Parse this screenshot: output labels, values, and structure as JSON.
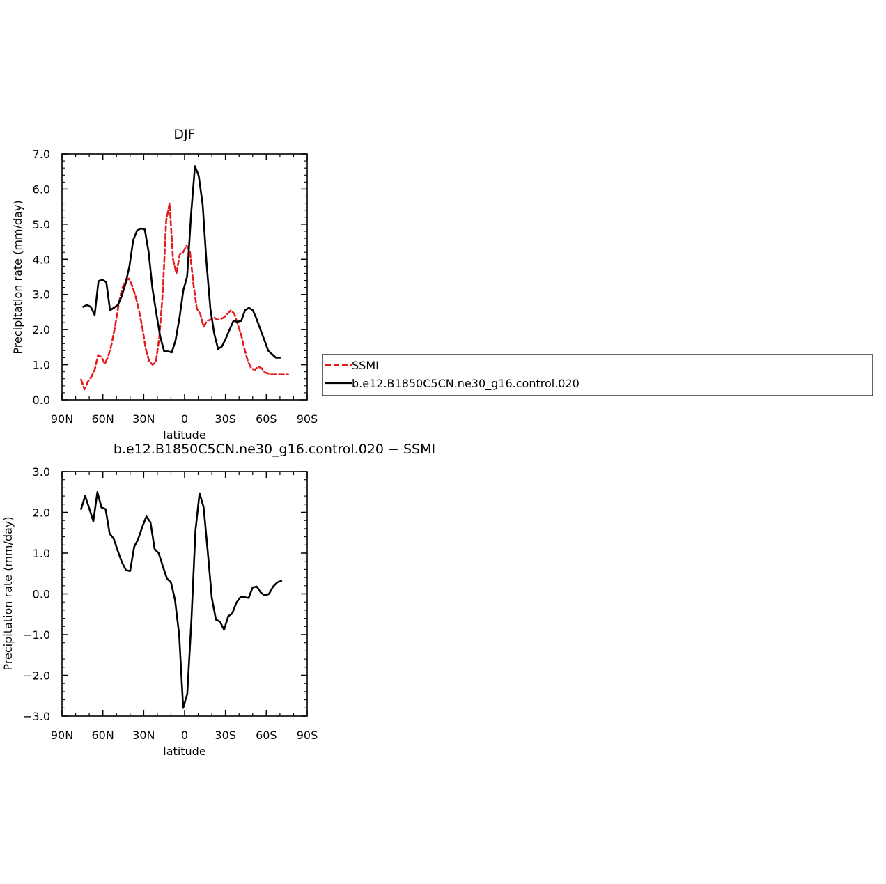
{
  "chart_data": [
    {
      "type": "line",
      "title": "DJF",
      "xlabel": "latitude",
      "ylabel": "Precipitation rate (mm/day)",
      "xlim": [
        90,
        -90
      ],
      "ylim": [
        0,
        7
      ],
      "x_ticks": [
        90,
        60,
        30,
        0,
        -30,
        -60,
        -90
      ],
      "x_tick_labels": [
        "90N",
        "60N",
        "30N",
        "0",
        "30S",
        "60S",
        "90S"
      ],
      "y_ticks": [
        0,
        1,
        2,
        3,
        4,
        5,
        6,
        7
      ],
      "y_tick_labels": [
        "0.0",
        "1.0",
        "2.0",
        "3.0",
        "4.0",
        "5.0",
        "6.0",
        "7.0"
      ],
      "legend_position": "right",
      "series": [
        {
          "name": "SSMI",
          "color": "#e41a1c",
          "dash": "dashed",
          "x": [
            76,
            73.5,
            71,
            68.5,
            66,
            63.5,
            61,
            58.5,
            56,
            53.5,
            51,
            48.5,
            46,
            43.5,
            41,
            38.5,
            36,
            33.5,
            31,
            28.5,
            26,
            23.5,
            21,
            18.5,
            16,
            13.5,
            11,
            8.5,
            6,
            3.5,
            1,
            -1.5,
            -4,
            -6.5,
            -9,
            -11.5,
            -14,
            -16.5,
            -19,
            -21.5,
            -24,
            -26.5,
            -29,
            -31.5,
            -34,
            -36.5,
            -39,
            -41.5,
            -44,
            -46.5,
            -49,
            -51.5,
            -54,
            -56.5,
            -59,
            -61.5,
            -64,
            -66.5,
            -69,
            -71.5,
            -74,
            -76
          ],
          "y": [
            0.58,
            0.3,
            0.52,
            0.65,
            0.85,
            1.28,
            1.22,
            1.02,
            1.25,
            1.6,
            2.1,
            2.7,
            3.15,
            3.38,
            3.45,
            3.25,
            2.95,
            2.55,
            2.05,
            1.45,
            1.1,
            1.0,
            1.08,
            1.8,
            3.05,
            5.1,
            5.6,
            4.0,
            3.6,
            4.15,
            4.2,
            4.4,
            4.2,
            3.3,
            2.6,
            2.45,
            2.08,
            2.25,
            2.28,
            2.35,
            2.28,
            2.3,
            2.35,
            2.45,
            2.55,
            2.45,
            2.15,
            1.85,
            1.45,
            1.1,
            0.9,
            0.85,
            0.95,
            0.9,
            0.78,
            0.75,
            0.72,
            0.72,
            0.72,
            0.72,
            0.72,
            0.72
          ]
        },
        {
          "name": "b.e12.B1850C5CN.ne30_g16.control.020",
          "color": "#000000",
          "dash": "solid",
          "x": [
            74.5,
            71.7,
            68.9,
            66,
            63.2,
            60.4,
            57.5,
            54.7,
            51.9,
            49,
            46.2,
            43.4,
            40.5,
            37.7,
            34.9,
            32,
            29.2,
            26.4,
            23.5,
            20.7,
            17.9,
            15,
            12.2,
            9.4,
            6.6,
            3.7,
            0.9,
            -1.9,
            -4.8,
            -7.6,
            -10.4,
            -13.3,
            -16.1,
            -18.9,
            -21.8,
            -24.6,
            -27.4,
            -30.3,
            -33.1,
            -35.9,
            -38.7,
            -41.6,
            -44.4,
            -47.2,
            -50.1,
            -52.9,
            -55.7,
            -58.6,
            -61.4,
            -64.2,
            -67.1,
            -69.9
          ],
          "y": [
            2.65,
            2.7,
            2.65,
            2.42,
            3.38,
            3.42,
            3.35,
            2.55,
            2.62,
            2.7,
            2.95,
            3.3,
            3.8,
            4.55,
            4.82,
            4.88,
            4.85,
            4.2,
            3.15,
            2.45,
            1.8,
            1.38,
            1.38,
            1.35,
            1.7,
            2.35,
            3.12,
            3.52,
            5.3,
            6.65,
            6.38,
            5.55,
            3.9,
            2.6,
            1.88,
            1.45,
            1.52,
            1.75,
            2.0,
            2.25,
            2.22,
            2.25,
            2.55,
            2.62,
            2.55,
            2.3,
            2.0,
            1.7,
            1.4,
            1.3,
            1.2,
            1.2
          ]
        }
      ]
    },
    {
      "type": "line",
      "title": "b.e12.B1850C5CN.ne30_g16.control.020 − SSMI",
      "xlabel": "latitude",
      "ylabel": "Precipitation rate (mm/day)",
      "xlim": [
        90,
        -90
      ],
      "ylim": [
        -3,
        3
      ],
      "x_ticks": [
        90,
        60,
        30,
        0,
        -30,
        -60,
        -90
      ],
      "x_tick_labels": [
        "90N",
        "60N",
        "30N",
        "0",
        "30S",
        "60S",
        "90S"
      ],
      "y_ticks": [
        -3,
        -2,
        -1,
        0,
        1,
        2,
        3
      ],
      "y_tick_labels": [
        "−3.0",
        "−2.0",
        "−1.0",
        "0.0",
        "1.0",
        "2.0",
        "3.0"
      ],
      "series": [
        {
          "name": "",
          "color": "#000000",
          "dash": "solid",
          "x": [
            76,
            73,
            70,
            67,
            64,
            61,
            58,
            55,
            52,
            49,
            46,
            43,
            40,
            37,
            34,
            31,
            28,
            25,
            22,
            19,
            16,
            13,
            10,
            7,
            4,
            1,
            -2,
            -5,
            -8,
            -11,
            -14,
            -17,
            -20,
            -23,
            -26,
            -29,
            -32,
            -35,
            -38,
            -41,
            -44,
            -47,
            -50,
            -53,
            -56,
            -59,
            -62,
            -65,
            -68,
            -71
          ],
          "y": [
            2.08,
            2.4,
            2.1,
            1.78,
            2.5,
            2.12,
            2.08,
            1.48,
            1.35,
            1.05,
            0.78,
            0.58,
            0.56,
            1.15,
            1.35,
            1.65,
            1.9,
            1.75,
            1.1,
            1.0,
            0.68,
            0.38,
            0.28,
            -0.15,
            -1.0,
            -2.8,
            -2.45,
            -0.65,
            1.55,
            2.47,
            2.12,
            1.05,
            -0.1,
            -0.63,
            -0.68,
            -0.88,
            -0.55,
            -0.48,
            -0.22,
            -0.08,
            -0.08,
            -0.1,
            0.16,
            0.18,
            0.03,
            -0.04,
            0.0,
            0.18,
            0.28,
            0.32
          ]
        }
      ]
    }
  ]
}
